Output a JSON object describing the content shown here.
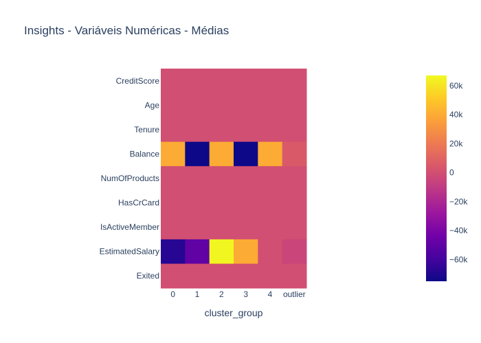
{
  "chart_data": {
    "type": "heatmap",
    "title": "Insights - Variáveis Numéricas - Médias",
    "xlabel": "cluster_group",
    "ylabel": "",
    "x_categories": [
      "0",
      "1",
      "2",
      "3",
      "4",
      "outlier"
    ],
    "y_categories": [
      "CreditScore",
      "Age",
      "Tenure",
      "Balance",
      "NumOfProducts",
      "HasCrCard",
      "IsActiveMember",
      "EstimatedSalary",
      "Exited"
    ],
    "z": [
      [
        0,
        0,
        0,
        0,
        0,
        0
      ],
      [
        0,
        0,
        0,
        0,
        0,
        0
      ],
      [
        0,
        0,
        0,
        0,
        0,
        0
      ],
      [
        40000,
        -75000,
        40000,
        -75000,
        40000,
        5000
      ],
      [
        0,
        0,
        0,
        0,
        0,
        0
      ],
      [
        0,
        0,
        0,
        0,
        0,
        0
      ],
      [
        0,
        0,
        0,
        0,
        0,
        0
      ],
      [
        -68000,
        -50000,
        66000,
        40000,
        0,
        -5000
      ],
      [
        0,
        0,
        0,
        0,
        0,
        0
      ]
    ],
    "zmin": -75000,
    "zmax": 67000,
    "colorscale": "Plasma",
    "colorbar_ticks": [
      {
        "value": 60000,
        "label": "60k"
      },
      {
        "value": 40000,
        "label": "40k"
      },
      {
        "value": 20000,
        "label": "20k"
      },
      {
        "value": 0,
        "label": "0"
      },
      {
        "value": -20000,
        "label": "−20k"
      },
      {
        "value": -40000,
        "label": "−40k"
      },
      {
        "value": -60000,
        "label": "−60k"
      }
    ]
  }
}
